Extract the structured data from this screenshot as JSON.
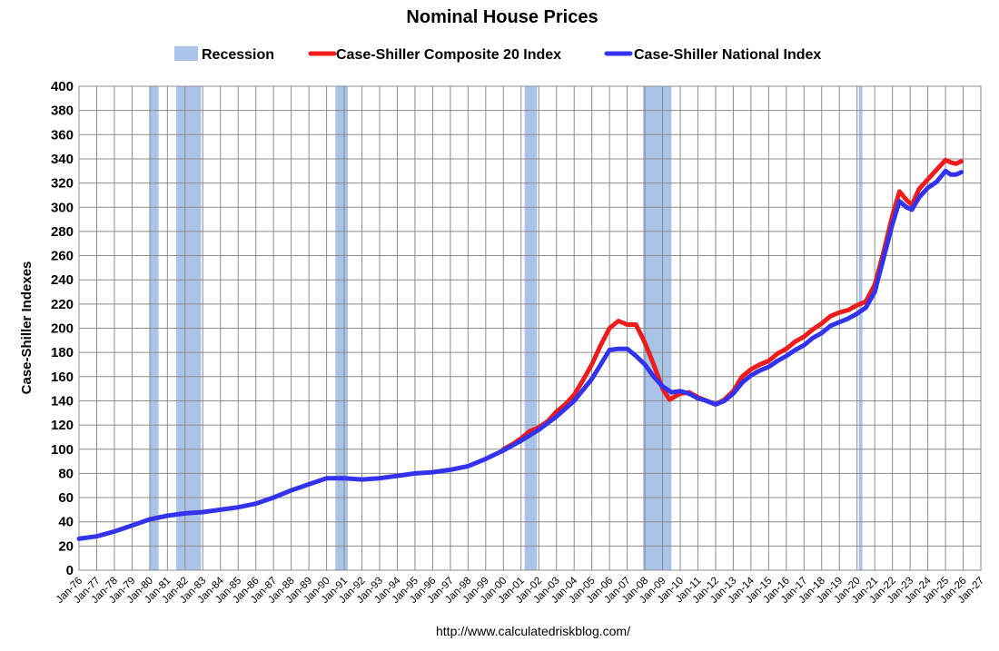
{
  "chart_data": {
    "type": "line",
    "title": "Nominal House Prices",
    "ylabel": "Case-Shiller Indexes",
    "xlabel": "",
    "ylim": [
      0,
      400
    ],
    "yticks": [
      0,
      20,
      40,
      60,
      80,
      100,
      120,
      140,
      160,
      180,
      200,
      220,
      240,
      260,
      280,
      300,
      320,
      340,
      360,
      380,
      400
    ],
    "xlim": [
      1976,
      2027
    ],
    "xticks": [
      "Jan-76",
      "Jan-77",
      "Jan-78",
      "Jan-79",
      "Jan-80",
      "Jan-81",
      "Jan-82",
      "Jan-83",
      "Jan-84",
      "Jan-85",
      "Jan-86",
      "Jan-87",
      "Jan-88",
      "Jan-89",
      "Jan-90",
      "Jan-91",
      "Jan-92",
      "Jan-93",
      "Jan-94",
      "Jan-95",
      "Jan-96",
      "Jan-97",
      "Jan-98",
      "Jan-99",
      "Jan-00",
      "Jan-01",
      "Jan-02",
      "Jan-03",
      "Jan-04",
      "Jan-05",
      "Jan-06",
      "Jan-07",
      "Jan-08",
      "Jan-09",
      "Jan-10",
      "Jan-11",
      "Jan-12",
      "Jan-13",
      "Jan-14",
      "Jan-15",
      "Jan-16",
      "Jan-17",
      "Jan-18",
      "Jan-19",
      "Jan-20",
      "Jan-21",
      "Jan-22",
      "Jan-23",
      "Jan-24",
      "Jan-25",
      "Jan-26",
      "Jan-27"
    ],
    "grid": true,
    "legend_position": "top",
    "source": "http://www.calculatedriskblog.com/",
    "recession": {
      "name": "Recession",
      "color": "#a9c4e8",
      "periods": [
        [
          1980.0,
          1980.5
        ],
        [
          1981.5,
          1982.9
        ],
        [
          1990.5,
          1991.2
        ],
        [
          2001.2,
          2001.9
        ],
        [
          2007.9,
          2009.5
        ],
        [
          2020.1,
          2020.3
        ]
      ]
    },
    "series": [
      {
        "name": "Case-Shiller Composite 20 Index",
        "color": "#ee1c1c",
        "points": [
          [
            2000.0,
            100
          ],
          [
            2000.5,
            104
          ],
          [
            2001.0,
            109
          ],
          [
            2001.5,
            115
          ],
          [
            2002.0,
            118
          ],
          [
            2002.5,
            123
          ],
          [
            2003.0,
            131
          ],
          [
            2003.5,
            137
          ],
          [
            2004.0,
            145
          ],
          [
            2004.5,
            157
          ],
          [
            2005.0,
            170
          ],
          [
            2005.5,
            186
          ],
          [
            2006.0,
            200
          ],
          [
            2006.5,
            206
          ],
          [
            2007.0,
            203
          ],
          [
            2007.5,
            203
          ],
          [
            2008.0,
            188
          ],
          [
            2008.5,
            170
          ],
          [
            2009.0,
            150
          ],
          [
            2009.4,
            141
          ],
          [
            2010.0,
            146
          ],
          [
            2010.5,
            147
          ],
          [
            2011.0,
            143
          ],
          [
            2011.5,
            140
          ],
          [
            2012.0,
            137
          ],
          [
            2012.5,
            141
          ],
          [
            2013.0,
            148
          ],
          [
            2013.5,
            160
          ],
          [
            2014.0,
            166
          ],
          [
            2014.5,
            170
          ],
          [
            2015.0,
            173
          ],
          [
            2015.5,
            179
          ],
          [
            2016.0,
            183
          ],
          [
            2016.5,
            189
          ],
          [
            2017.0,
            193
          ],
          [
            2017.5,
            199
          ],
          [
            2018.0,
            204
          ],
          [
            2018.5,
            210
          ],
          [
            2019.0,
            213
          ],
          [
            2019.5,
            215
          ],
          [
            2020.0,
            219
          ],
          [
            2020.5,
            222
          ],
          [
            2021.0,
            236
          ],
          [
            2021.5,
            263
          ],
          [
            2022.0,
            293
          ],
          [
            2022.4,
            313
          ],
          [
            2022.8,
            306
          ],
          [
            2023.1,
            302
          ],
          [
            2023.5,
            315
          ],
          [
            2024.0,
            323
          ],
          [
            2024.5,
            331
          ],
          [
            2025.0,
            339
          ],
          [
            2025.3,
            337
          ],
          [
            2025.6,
            336
          ],
          [
            2025.9,
            338
          ]
        ]
      },
      {
        "name": "Case-Shiller National Index",
        "color": "#3333ee",
        "points": [
          [
            1976.0,
            26
          ],
          [
            1977.0,
            28
          ],
          [
            1978.0,
            32
          ],
          [
            1979.0,
            37
          ],
          [
            1980.0,
            42
          ],
          [
            1981.0,
            45
          ],
          [
            1982.0,
            47
          ],
          [
            1983.0,
            48
          ],
          [
            1984.0,
            50
          ],
          [
            1985.0,
            52
          ],
          [
            1986.0,
            55
          ],
          [
            1987.0,
            60
          ],
          [
            1988.0,
            66
          ],
          [
            1989.0,
            71
          ],
          [
            1990.0,
            76
          ],
          [
            1991.0,
            76
          ],
          [
            1992.0,
            75
          ],
          [
            1993.0,
            76
          ],
          [
            1994.0,
            78
          ],
          [
            1995.0,
            80
          ],
          [
            1996.0,
            81
          ],
          [
            1997.0,
            83
          ],
          [
            1998.0,
            86
          ],
          [
            1999.0,
            92
          ],
          [
            2000.0,
            99
          ],
          [
            2001.0,
            107
          ],
          [
            2002.0,
            116
          ],
          [
            2003.0,
            127
          ],
          [
            2004.0,
            140
          ],
          [
            2005.0,
            158
          ],
          [
            2005.5,
            170
          ],
          [
            2006.0,
            182
          ],
          [
            2006.5,
            183
          ],
          [
            2007.0,
            183
          ],
          [
            2007.5,
            177
          ],
          [
            2008.0,
            170
          ],
          [
            2008.5,
            160
          ],
          [
            2009.0,
            152
          ],
          [
            2009.5,
            147
          ],
          [
            2010.0,
            148
          ],
          [
            2010.5,
            146
          ],
          [
            2011.0,
            142
          ],
          [
            2011.5,
            140
          ],
          [
            2012.0,
            137
          ],
          [
            2012.5,
            140
          ],
          [
            2013.0,
            146
          ],
          [
            2013.5,
            155
          ],
          [
            2014.0,
            161
          ],
          [
            2014.5,
            165
          ],
          [
            2015.0,
            168
          ],
          [
            2015.5,
            173
          ],
          [
            2016.0,
            177
          ],
          [
            2016.5,
            182
          ],
          [
            2017.0,
            186
          ],
          [
            2017.5,
            192
          ],
          [
            2018.0,
            196
          ],
          [
            2018.5,
            202
          ],
          [
            2019.0,
            205
          ],
          [
            2019.5,
            208
          ],
          [
            2020.0,
            212
          ],
          [
            2020.5,
            217
          ],
          [
            2021.0,
            230
          ],
          [
            2021.5,
            258
          ],
          [
            2022.0,
            286
          ],
          [
            2022.4,
            305
          ],
          [
            2022.8,
            300
          ],
          [
            2023.1,
            298
          ],
          [
            2023.5,
            308
          ],
          [
            2024.0,
            316
          ],
          [
            2024.5,
            321
          ],
          [
            2025.0,
            330
          ],
          [
            2025.3,
            327
          ],
          [
            2025.6,
            327
          ],
          [
            2025.9,
            329
          ]
        ]
      }
    ]
  }
}
